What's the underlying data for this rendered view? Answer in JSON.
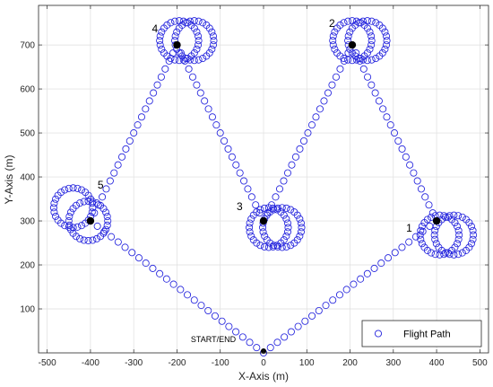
{
  "chart_data": {
    "type": "scatter",
    "xlabel": "X-Axis (m)",
    "ylabel": "Y-Axis (m)",
    "xlim": [
      -520,
      520
    ],
    "ylim": [
      0,
      790
    ],
    "xticks": [
      -500,
      -400,
      -300,
      -200,
      -100,
      0,
      100,
      200,
      300,
      400,
      500
    ],
    "yticks": [
      100,
      200,
      300,
      400,
      500,
      600,
      700
    ],
    "grid": true,
    "legend": {
      "position": "bottom-right",
      "entries": [
        "Flight Path"
      ]
    },
    "colors": {
      "path": "#2222dd",
      "waypoint": "#000000",
      "grid": "#dedede",
      "axes": "#262626"
    },
    "start": {
      "x": 0,
      "y": 0,
      "label": "START/END"
    },
    "loiter_radius": 45,
    "route": [
      {
        "x": 0,
        "y": 0
      },
      {
        "x": 400,
        "y": 300,
        "label": "1"
      },
      {
        "x": 205,
        "y": 700,
        "label": "2"
      },
      {
        "x": 0,
        "y": 300,
        "label": "3"
      },
      {
        "x": -200,
        "y": 700,
        "label": "4"
      },
      {
        "x": -400,
        "y": 300,
        "label": "5"
      },
      {
        "x": 0,
        "y": 0
      }
    ],
    "waypoints": [
      {
        "label": "1",
        "x": 400,
        "y": 300,
        "loiter_centers": [
          [
            407,
            268
          ],
          [
            440,
            268
          ]
        ]
      },
      {
        "label": "2",
        "x": 205,
        "y": 700,
        "loiter_centers": [
          [
            205,
            710
          ],
          [
            240,
            710
          ]
        ]
      },
      {
        "label": "3",
        "x": 0,
        "y": 300,
        "loiter_centers": [
          [
            12,
            285
          ],
          [
            43,
            285
          ]
        ]
      },
      {
        "label": "4",
        "x": -200,
        "y": 700,
        "loiter_centers": [
          [
            -195,
            710
          ],
          [
            -160,
            710
          ]
        ]
      },
      {
        "label": "5",
        "x": -400,
        "y": 300,
        "loiter_centers": [
          [
            -440,
            330
          ],
          [
            -405,
            300
          ]
        ]
      }
    ]
  }
}
